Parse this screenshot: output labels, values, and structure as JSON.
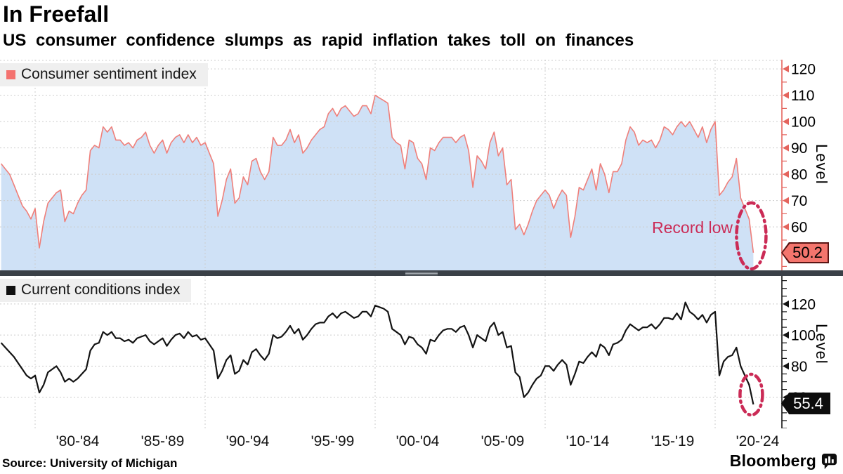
{
  "header": {
    "title": "In Freefall",
    "subtitle": "US consumer confidence slumps as rapid inflation takes toll on finances"
  },
  "x_axis": {
    "labels": [
      "'80-'84",
      "'85-'89",
      "'90-'94",
      "'95-'99",
      "'00-'04",
      "'05-'09",
      "'10-'14",
      "'15-'19",
      "'20-'24"
    ],
    "label_centers": [
      1982.5,
      1987.5,
      1992.5,
      1997.5,
      2002.5,
      2007.5,
      2012.5,
      2017.5,
      2022.5
    ],
    "gridline_years": [
      1980,
      1990,
      2000,
      2010,
      2020
    ],
    "range": [
      1978,
      2024
    ]
  },
  "chart_data": [
    {
      "type": "area",
      "legend": "Consumer sentiment index",
      "ylabel": "Level",
      "ylim": [
        43.5,
        123.5
      ],
      "y_ticks": [
        60,
        70,
        80,
        90,
        100,
        110,
        120
      ],
      "y_minor_step": 5,
      "x_start": 1978.0,
      "x_step": 0.25,
      "values": [
        84,
        82,
        80,
        76,
        72,
        68,
        66,
        63,
        67,
        52,
        62,
        69,
        71,
        73,
        74,
        62,
        66,
        65,
        69,
        72,
        74,
        89,
        91,
        90,
        98,
        96,
        98,
        93,
        93,
        91,
        92,
        90,
        93,
        94,
        96,
        91,
        88,
        91,
        93,
        88,
        92,
        94,
        95,
        92,
        95,
        92,
        94,
        91,
        92,
        88,
        84,
        64,
        70,
        78,
        82,
        69,
        71,
        79,
        76,
        85,
        86,
        81,
        78,
        81,
        94,
        91,
        91,
        93,
        97,
        92,
        95,
        88,
        90,
        93,
        95,
        97,
        98,
        103,
        105,
        102,
        105,
        106,
        104,
        102,
        103,
        106,
        106,
        103,
        110,
        109,
        108,
        107,
        94,
        92,
        91,
        82,
        93,
        92,
        86,
        84,
        78,
        90,
        89,
        92,
        94,
        94,
        94,
        92,
        94,
        95,
        89,
        75,
        87,
        85,
        82,
        92,
        96,
        87,
        90,
        76,
        78,
        59,
        61,
        57,
        61,
        66,
        70,
        72,
        74,
        72,
        67,
        71,
        74,
        72,
        56,
        64,
        75,
        74,
        78,
        82,
        74,
        84,
        80,
        73,
        81,
        81,
        84,
        93,
        98,
        96,
        91,
        93,
        92,
        93,
        90,
        93,
        98,
        97,
        95,
        98,
        100,
        98,
        100,
        97,
        94,
        98,
        92,
        97,
        100,
        72,
        74,
        77,
        79,
        86,
        71,
        67,
        63,
        50.2
      ],
      "last_value_label": "50.2",
      "annotation": {
        "text": "Record low",
        "circle_last": true,
        "color": "#cb2b56"
      },
      "colors": {
        "line": "#ef7f7a",
        "fill": "#cfe1f6",
        "axis": "#e4645d",
        "tag_bg": "#f4756d",
        "tag_border": "#5a1514",
        "tag_text": "#000000"
      }
    },
    {
      "type": "line",
      "legend": "Current conditions index",
      "ylabel": "Level",
      "ylim": [
        40,
        138
      ],
      "y_ticks": [
        60,
        80,
        100,
        120
      ],
      "y_minor_step": 5,
      "x_start": 1978.0,
      "x_step": 0.25,
      "values": [
        95,
        92,
        89,
        86,
        82,
        78,
        74,
        72,
        74,
        63,
        68,
        76,
        78,
        80,
        76,
        70,
        72,
        70,
        72,
        75,
        78,
        90,
        94,
        95,
        102,
        100,
        102,
        98,
        98,
        96,
        97,
        95,
        98,
        99,
        100,
        96,
        94,
        96,
        98,
        93,
        97,
        100,
        101,
        98,
        102,
        99,
        100,
        97,
        98,
        94,
        90,
        72,
        77,
        84,
        87,
        75,
        77,
        84,
        81,
        89,
        91,
        87,
        84,
        88,
        100,
        98,
        99,
        102,
        106,
        101,
        104,
        97,
        100,
        104,
        107,
        108,
        108,
        112,
        114,
        111,
        114,
        115,
        113,
        111,
        112,
        115,
        115,
        112,
        119,
        118,
        117,
        115,
        104,
        102,
        100,
        94,
        99,
        98,
        94,
        92,
        88,
        97,
        96,
        100,
        103,
        104,
        104,
        102,
        105,
        106,
        100,
        92,
        100,
        98,
        96,
        105,
        108,
        100,
        102,
        92,
        93,
        76,
        73,
        60,
        63,
        68,
        72,
        74,
        80,
        80,
        77,
        81,
        84,
        81,
        68,
        75,
        83,
        82,
        86,
        89,
        86,
        94,
        92,
        87,
        94,
        95,
        97,
        103,
        107,
        105,
        103,
        105,
        105,
        107,
        104,
        107,
        111,
        111,
        110,
        114,
        110,
        121,
        115,
        113,
        110,
        113,
        108,
        113,
        115,
        74,
        83,
        86,
        87,
        92,
        80,
        74,
        68,
        55.4
      ],
      "last_value_label": "55.4",
      "annotation": {
        "circle_last": true,
        "color": "#cb2b56"
      },
      "colors": {
        "line": "#131313",
        "axis": "#131313",
        "tag_bg": "#0d0d0d",
        "tag_border": "#0d0d0d",
        "tag_text": "#ffffff"
      }
    }
  ],
  "footer": {
    "source": "Source: University of Michigan",
    "brand": "Bloomberg",
    "brand_icon": "bar-chart-bubble-icon"
  }
}
